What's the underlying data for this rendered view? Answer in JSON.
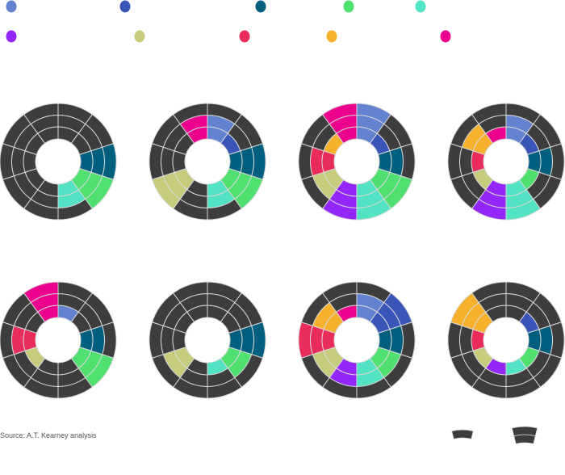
{
  "chart_data": {
    "type": "radial-ring",
    "title": "",
    "legend": {
      "placement": "top",
      "colors": [
        "#6382d0",
        "#3a55b8",
        "#005f7f",
        "#50e070",
        "#52e3c5",
        "#9326f8",
        "#c7cc7d",
        "#e92c5a",
        "#f8b12c",
        "#ec008c"
      ]
    },
    "empty_color": "#3d3d3d",
    "max_level": 3,
    "charts": [
      {
        "levels": [
          0,
          0,
          3,
          3,
          2,
          0,
          0,
          0,
          0,
          0
        ]
      },
      {
        "levels": [
          2,
          1,
          3,
          3,
          2,
          0,
          3,
          0,
          0,
          2
        ]
      },
      {
        "levels": [
          3,
          1,
          2,
          3,
          3,
          3,
          2,
          2,
          1,
          3
        ]
      },
      {
        "levels": [
          2,
          1,
          2,
          1,
          3,
          3,
          1,
          1,
          2,
          1
        ]
      },
      {
        "levels": [
          1,
          0,
          2,
          3,
          0,
          0,
          1,
          2,
          0,
          3
        ]
      },
      {
        "levels": [
          0,
          0,
          3,
          2,
          1,
          0,
          2,
          0,
          0,
          0
        ]
      },
      {
        "levels": [
          2,
          3,
          2,
          2,
          2,
          2,
          2,
          3,
          2,
          1
        ]
      },
      {
        "levels": [
          0,
          1,
          2,
          1,
          1,
          1,
          1,
          1,
          3,
          0
        ]
      }
    ],
    "key_levels": [
      1,
      2
    ]
  },
  "source": "Source: A.T. Kearney analysis"
}
